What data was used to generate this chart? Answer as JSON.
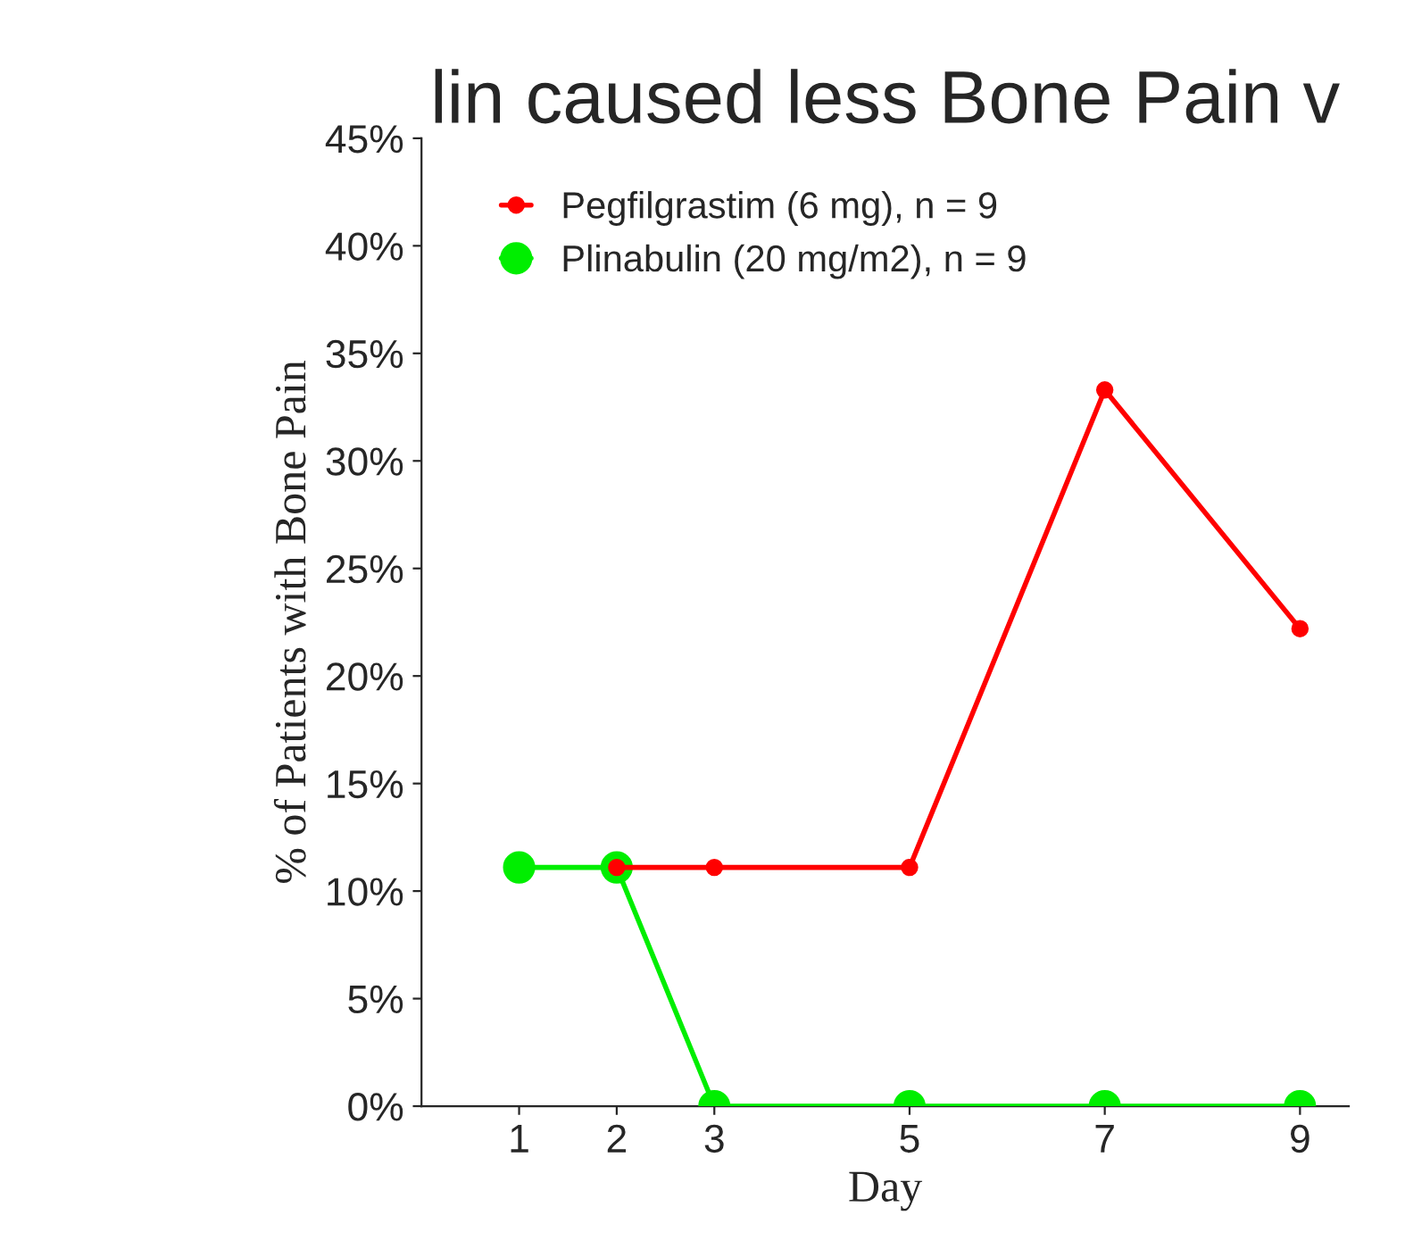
{
  "chart_data": {
    "type": "line",
    "title": "lin caused less Bone Pain v",
    "xlabel": "Day",
    "ylabel": "% of Patients with Bone Pain",
    "x": [
      1,
      2,
      3,
      5,
      7,
      9
    ],
    "series": [
      {
        "name": "Pegfilgrastim (6 mg), n = 9",
        "color": "#ff0000",
        "values": [
          null,
          11.1,
          11.1,
          11.1,
          33.3,
          22.2
        ]
      },
      {
        "name": "Plinabulin (20 mg/m2), n = 9",
        "color": "#00ee00",
        "values": [
          11.1,
          11.1,
          0,
          0,
          0,
          0
        ]
      }
    ],
    "xlim": [
      0,
      9.5
    ],
    "xticks": [
      1,
      2,
      3,
      5,
      7,
      9
    ],
    "ylim": [
      0,
      45
    ],
    "yticks": [
      {
        "value": 0,
        "label": "0%"
      },
      {
        "value": 5,
        "label": "5%"
      },
      {
        "value": 10,
        "label": "10%"
      },
      {
        "value": 15,
        "label": "15%"
      },
      {
        "value": 20,
        "label": "20%"
      },
      {
        "value": 25,
        "label": "25%"
      },
      {
        "value": 30,
        "label": "30%"
      },
      {
        "value": 35,
        "label": "35%"
      },
      {
        "value": 40,
        "label": "40%"
      },
      {
        "value": 45,
        "label": "45%"
      }
    ],
    "legend": "top left",
    "marker": "circle",
    "line_style": "solid",
    "grid": false
  }
}
